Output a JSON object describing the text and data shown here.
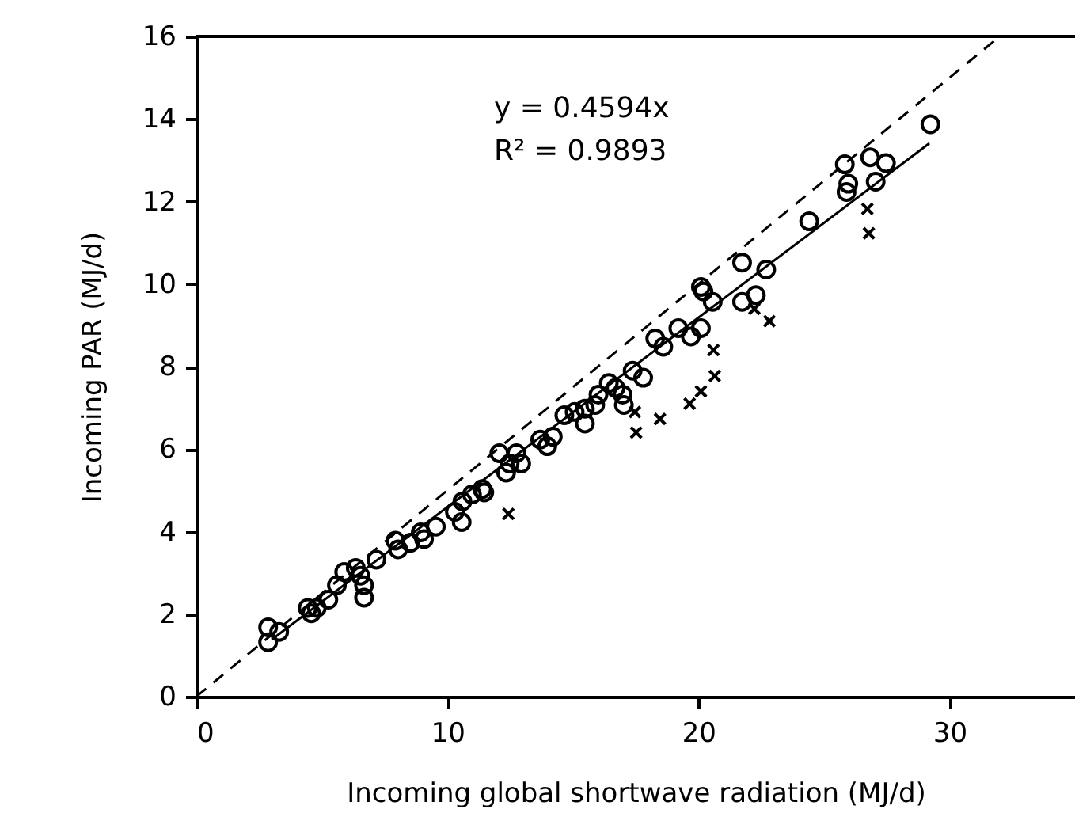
{
  "chart_data": {
    "type": "scatter",
    "xlabel": "Incoming global shortwave radiation (MJ/d)",
    "ylabel": "Incoming PAR (MJ/d)",
    "xlim": [
      0,
      35
    ],
    "ylim": [
      0,
      16
    ],
    "xticks": [
      0,
      10,
      20,
      30
    ],
    "yticks": [
      0,
      2,
      4,
      6,
      8,
      10,
      12,
      14,
      16
    ],
    "grid": false,
    "annotations": [
      "y = 0.4594x",
      "R² = 0.9893"
    ],
    "series": [
      {
        "marker": "circle",
        "color": "#000000",
        "x": [
          2.86,
          2.86,
          3.3,
          4.44,
          4.58,
          4.8,
          5.26,
          5.6,
          5.89,
          6.35,
          6.54,
          6.68,
          6.68,
          7.17,
          7.93,
          8.04,
          8.53,
          8.94,
          9.07,
          9.54,
          10.3,
          10.57,
          10.6,
          10.98,
          11.39,
          11.47,
          12.07,
          12.34,
          12.48,
          12.75,
          12.94,
          13.7,
          13.98,
          14.2,
          14.66,
          15.07,
          15.48,
          15.48,
          15.89,
          16.02,
          16.43,
          16.7,
          16.98,
          17.03,
          17.38,
          17.8,
          18.28,
          18.6,
          19.2,
          19.7,
          20.1,
          20.1,
          20.2,
          20.57,
          21.74,
          21.74,
          22.29,
          22.7,
          24.41,
          25.83,
          25.97,
          25.9,
          26.84,
          27.06,
          27.47,
          29.24
        ],
        "values": [
          1.32,
          1.68,
          1.57,
          2.15,
          2.02,
          2.15,
          2.35,
          2.7,
          3.02,
          3.12,
          2.93,
          2.7,
          2.4,
          3.32,
          3.78,
          3.57,
          3.73,
          3.98,
          3.82,
          4.12,
          4.48,
          4.23,
          4.73,
          4.9,
          5.03,
          4.95,
          5.9,
          5.43,
          5.65,
          5.9,
          5.65,
          6.23,
          6.07,
          6.3,
          6.82,
          6.9,
          6.62,
          6.98,
          7.07,
          7.32,
          7.6,
          7.48,
          7.32,
          7.07,
          7.9,
          7.73,
          8.68,
          8.48,
          8.93,
          8.73,
          8.93,
          9.93,
          9.82,
          9.57,
          10.52,
          9.57,
          9.73,
          10.35,
          11.52,
          12.9,
          12.43,
          12.23,
          13.07,
          12.48,
          12.93,
          13.87
        ]
      },
      {
        "marker": "cross",
        "color": "#000000",
        "x": [
          12.43,
          17.47,
          17.52,
          18.47,
          19.65,
          20.1,
          20.65,
          20.6,
          22.23,
          22.83,
          26.73,
          26.79
        ],
        "values": [
          4.43,
          6.9,
          6.4,
          6.73,
          7.1,
          7.4,
          7.77,
          8.4,
          9.4,
          9.1,
          11.82,
          11.23
        ]
      },
      {
        "type": "line",
        "marker": "none",
        "line_style": "solid",
        "color": "#000000",
        "x": [
          3,
          29.2
        ],
        "values": [
          1.38,
          13.41
        ]
      },
      {
        "type": "line",
        "marker": "none",
        "line_style": "dashed",
        "color": "#000000",
        "x": [
          0,
          32
        ],
        "values": [
          0,
          16
        ]
      }
    ]
  }
}
